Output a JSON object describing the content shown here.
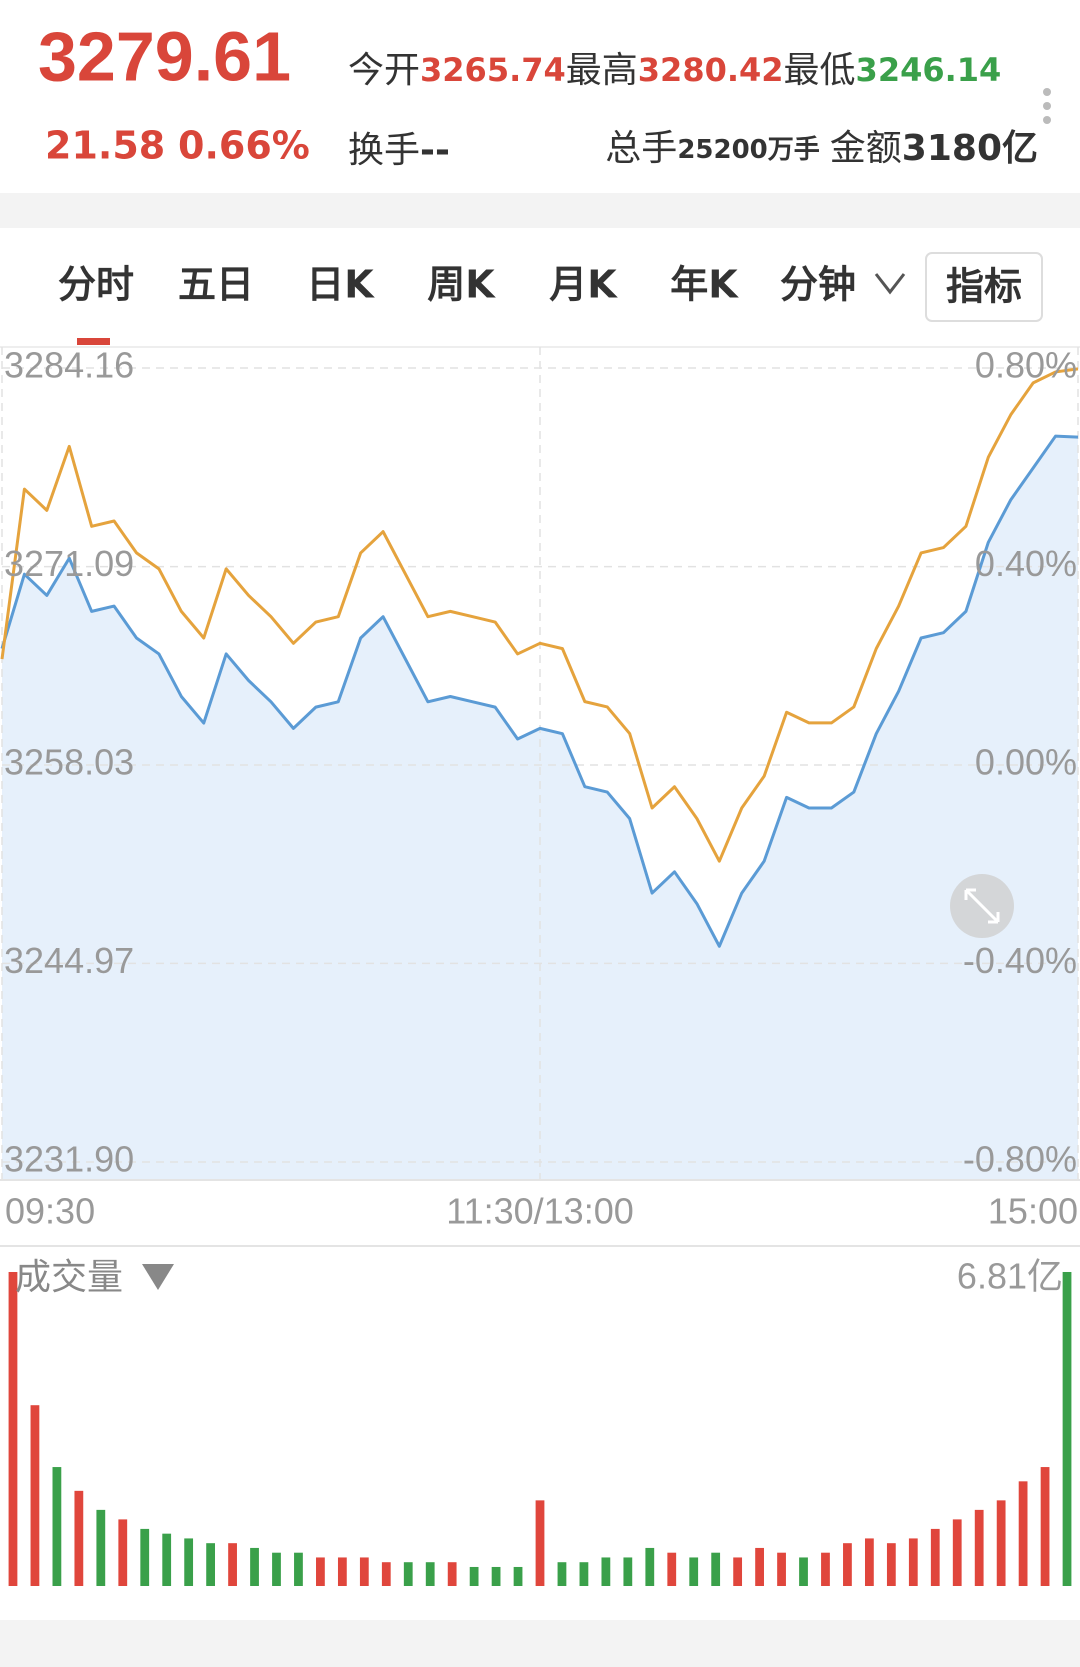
{
  "header": {
    "price": "3279.61",
    "change": "21.58",
    "change_pct": "0.66%",
    "open_label": "今开",
    "open": "3265.74",
    "high_label": "最高",
    "high": "3280.42",
    "low_label": "最低",
    "low": "3246.14",
    "turnover_label": "换手",
    "turnover": "--",
    "volume_label": "总手",
    "volume": "25200万手",
    "amount_label": "金额",
    "amount": "3180亿"
  },
  "tabs": [
    "分时",
    "五日",
    "日K",
    "周K",
    "月K",
    "年K",
    "分钟"
  ],
  "indicator_button": "指标",
  "chart_data": [
    {
      "type": "line",
      "grid": true,
      "area_color": "#e6f0fb",
      "x": [
        0,
        5,
        10,
        15,
        20,
        25,
        30,
        35,
        40,
        45,
        50,
        55,
        60,
        65,
        70,
        75,
        80,
        85,
        90,
        95,
        100,
        105,
        110,
        115,
        120,
        125,
        130,
        135,
        140,
        145,
        150,
        155,
        160,
        165,
        170,
        175,
        180,
        185,
        190,
        195,
        200,
        205,
        210,
        215,
        220,
        225,
        230,
        235,
        240
      ],
      "xlim": [
        0,
        240
      ],
      "xticks": [
        {
          "value": 0,
          "label": "09:30"
        },
        {
          "value": 120,
          "label": "11:30/13:00"
        },
        {
          "value": 240,
          "label": "15:00"
        }
      ],
      "ylim": [
        3231.9,
        3284.16
      ],
      "yticks": [
        3284.16,
        3271.09,
        3258.03,
        3244.97,
        {
          "value": 3231.9,
          "label": "3231.90"
        }
      ],
      "y2lim": [
        -0.8,
        0.8
      ],
      "y2ticks": [
        {
          "value": 0.8,
          "label": "0.80%"
        },
        {
          "value": 0.4,
          "label": "0.40%"
        },
        {
          "value": 0,
          "label": "0.00%"
        },
        {
          "value": -0.4,
          "label": "-0.40%"
        },
        {
          "value": -0.8,
          "label": "-0.80%"
        }
      ],
      "series": [
        {
          "color": "#5b9bd5",
          "values": [
            3265.69,
            3270.59,
            3269.19,
            3271.64,
            3268.14,
            3268.49,
            3266.39,
            3265.34,
            3262.54,
            3260.79,
            3265.34,
            3263.59,
            3262.19,
            3260.44,
            3261.84,
            3262.19,
            3266.39,
            3267.79,
            3264.99,
            3262.19,
            3262.54,
            3262.19,
            3261.84,
            3259.74,
            3260.44,
            3260.09,
            3256.6,
            3256.25,
            3254.5,
            3249.6,
            3251.0,
            3248.9,
            3246.1,
            3249.6,
            3251.7,
            3255.9,
            3255.2,
            3255.2,
            3256.25,
            3260.09,
            3262.89,
            3266.39,
            3266.74,
            3268.14,
            3272.69,
            3275.48,
            3277.58,
            3279.68,
            3279.61
          ]
        },
        {
          "color": "#e5a33d",
          "values": [
            3265.0,
            3276.19,
            3274.79,
            3279.0,
            3273.74,
            3274.09,
            3271.99,
            3270.94,
            3268.14,
            3266.39,
            3270.94,
            3269.19,
            3267.79,
            3266.04,
            3267.44,
            3267.79,
            3271.99,
            3273.39,
            3270.59,
            3267.79,
            3268.14,
            3267.79,
            3267.44,
            3265.34,
            3266.04,
            3265.69,
            3262.2,
            3261.85,
            3260.1,
            3255.2,
            3256.6,
            3254.5,
            3251.7,
            3255.2,
            3257.3,
            3261.5,
            3260.8,
            3260.8,
            3261.85,
            3265.69,
            3268.49,
            3271.99,
            3272.34,
            3273.74,
            3278.29,
            3281.08,
            3283.18,
            3283.9,
            3284.1
          ]
        }
      ]
    },
    {
      "type": "bar",
      "title": "成交量",
      "up_color": "#e0463c",
      "down_color": "#3aa04a",
      "ylim": [
        0,
        6.81
      ],
      "yticks": [
        {
          "value": 6.81,
          "label": "6.81亿"
        }
      ],
      "values": [
        6.6,
        3.8,
        2.5,
        2.0,
        1.6,
        1.4,
        1.2,
        1.1,
        1.0,
        0.9,
        0.9,
        0.8,
        0.7,
        0.7,
        0.6,
        0.6,
        0.6,
        0.5,
        0.5,
        0.5,
        0.5,
        0.4,
        0.4,
        0.4,
        1.8,
        0.5,
        0.5,
        0.6,
        0.6,
        0.8,
        0.7,
        0.6,
        0.7,
        0.6,
        0.8,
        0.7,
        0.6,
        0.7,
        0.9,
        1.0,
        0.9,
        1.0,
        1.2,
        1.4,
        1.6,
        1.8,
        2.2,
        2.5,
        6.6
      ]
    }
  ]
}
